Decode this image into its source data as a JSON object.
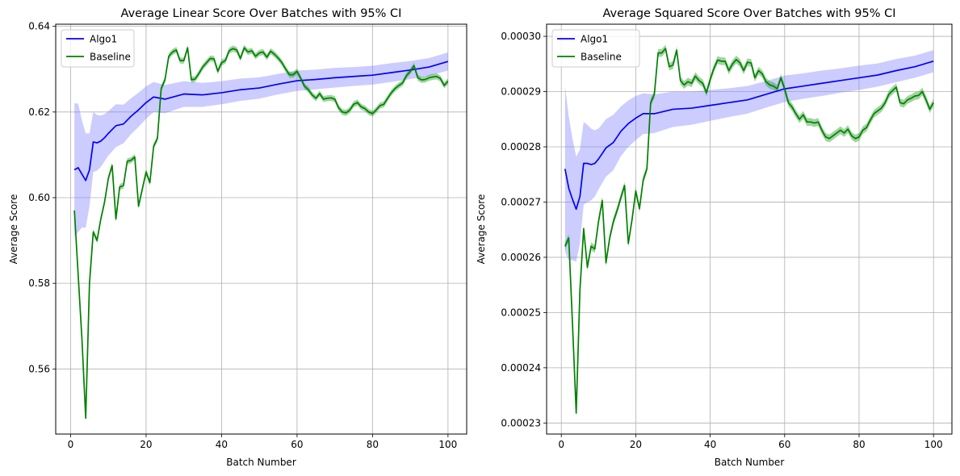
{
  "colors": {
    "algo": "#0000ff",
    "algo_band": "#8080ff",
    "baseline": "#008000",
    "baseline_band": "#2ca02c",
    "grid": "#b0b0b0"
  },
  "chart_data": [
    {
      "type": "line",
      "title": "Average Linear Score Over Batches with 95% CI",
      "xlabel": "Batch Number",
      "ylabel": "Average Score",
      "xlim": [
        -3.95,
        104.95
      ],
      "ylim": [
        0.5448,
        0.6405
      ],
      "xticks": [
        0,
        20,
        40,
        60,
        80,
        100
      ],
      "xtick_labels": [
        "0",
        "20",
        "40",
        "60",
        "80",
        "100"
      ],
      "yticks": [
        0.56,
        0.58,
        0.6,
        0.62,
        0.64
      ],
      "ytick_labels": [
        "0.56",
        "0.58",
        "0.60",
        "0.62",
        "0.64"
      ],
      "grid": true,
      "legend": "upper left",
      "series": [
        {
          "name": "Algo1",
          "x": [
            1,
            2,
            3,
            4,
            5,
            6,
            7,
            8,
            9,
            10,
            12,
            14,
            16,
            18,
            20,
            22,
            25,
            30,
            35,
            40,
            45,
            50,
            55,
            60,
            65,
            70,
            75,
            80,
            85,
            90,
            95,
            100
          ],
          "y": [
            0.6065,
            0.607,
            0.6055,
            0.604,
            0.6065,
            0.613,
            0.6128,
            0.6132,
            0.614,
            0.615,
            0.6168,
            0.6172,
            0.619,
            0.6205,
            0.6222,
            0.6235,
            0.623,
            0.6242,
            0.624,
            0.6245,
            0.6252,
            0.6256,
            0.6265,
            0.6273,
            0.6276,
            0.628,
            0.6283,
            0.6286,
            0.6292,
            0.6298,
            0.6305,
            0.6318
          ],
          "ci_halfwidth": [
            0.0155,
            0.015,
            0.0125,
            0.011,
            0.0085,
            0.007,
            0.0065,
            0.006,
            0.0055,
            0.0052,
            0.005,
            0.0045,
            0.0042,
            0.004,
            0.0038,
            0.0035,
            0.0033,
            0.003,
            0.0028,
            0.0027,
            0.0026,
            0.0025,
            0.0024,
            0.0024,
            0.0023,
            0.0023,
            0.0022,
            0.0022,
            0.0022,
            0.0021,
            0.0021,
            0.0021
          ]
        },
        {
          "name": "Baseline",
          "x": [
            1,
            2,
            3,
            4,
            5,
            6,
            7,
            8,
            9,
            10,
            11,
            12,
            13,
            14,
            15,
            16,
            17,
            18,
            19,
            20,
            21,
            22,
            23,
            24,
            25,
            26,
            27,
            28,
            29,
            30,
            31,
            32,
            33,
            34,
            35,
            36,
            37,
            38,
            39,
            40,
            41,
            42,
            43,
            44,
            45,
            46,
            47,
            48,
            49,
            50,
            51,
            52,
            53,
            54,
            55,
            56,
            57,
            58,
            59,
            60,
            61,
            62,
            63,
            64,
            65,
            66,
            67,
            68,
            69,
            70,
            71,
            72,
            73,
            74,
            75,
            76,
            77,
            78,
            79,
            80,
            81,
            82,
            83,
            84,
            85,
            86,
            87,
            88,
            89,
            90,
            91,
            92,
            93,
            94,
            95,
            96,
            97,
            98,
            99,
            100
          ],
          "y": [
            0.597,
            0.582,
            0.567,
            0.5485,
            0.58,
            0.592,
            0.59,
            0.595,
            0.599,
            0.6045,
            0.6075,
            0.595,
            0.6025,
            0.6028,
            0.6085,
            0.6087,
            0.6095,
            0.598,
            0.602,
            0.606,
            0.6035,
            0.612,
            0.6138,
            0.6255,
            0.6275,
            0.633,
            0.634,
            0.6345,
            0.632,
            0.632,
            0.635,
            0.6275,
            0.6277,
            0.629,
            0.6305,
            0.6315,
            0.6325,
            0.6324,
            0.6295,
            0.6315,
            0.632,
            0.6343,
            0.6348,
            0.6345,
            0.6325,
            0.635,
            0.634,
            0.6343,
            0.633,
            0.6338,
            0.634,
            0.6328,
            0.6342,
            0.6335,
            0.6326,
            0.6315,
            0.63,
            0.6287,
            0.6287,
            0.6295,
            0.6278,
            0.626,
            0.6252,
            0.624,
            0.6232,
            0.6243,
            0.623,
            0.6232,
            0.6233,
            0.623,
            0.621,
            0.62,
            0.6198,
            0.6205,
            0.6218,
            0.6222,
            0.6212,
            0.6208,
            0.62,
            0.6196,
            0.6205,
            0.6215,
            0.6218,
            0.6232,
            0.6245,
            0.6255,
            0.6262,
            0.6268,
            0.6285,
            0.6295,
            0.6308,
            0.628,
            0.6275,
            0.6276,
            0.628,
            0.6282,
            0.6283,
            0.6278,
            0.6262,
            0.6272
          ],
          "ci_halfwidth": 0.0007
        }
      ]
    },
    {
      "type": "line",
      "title": "Average Squared Score Over Batches with 95% CI",
      "xlabel": "Batch Number",
      "ylabel": "Average Score",
      "xlim": [
        -3.95,
        104.95
      ],
      "ylim": [
        0.000228,
        0.0003022
      ],
      "xticks": [
        0,
        20,
        40,
        60,
        80,
        100
      ],
      "xtick_labels": [
        "0",
        "20",
        "40",
        "60",
        "80",
        "100"
      ],
      "yticks": [
        0.00023,
        0.00024,
        0.00025,
        0.00026,
        0.00027,
        0.00028,
        0.00029,
        0.0003
      ],
      "ytick_labels": [
        "0.00023",
        "0.00024",
        "0.00025",
        "0.00026",
        "0.00027",
        "0.00028",
        "0.00029",
        "0.00030"
      ],
      "grid": true,
      "legend": "upper left",
      "series": [
        {
          "name": "Algo1",
          "x": [
            1,
            2,
            3,
            4,
            5,
            6,
            7,
            8,
            9,
            10,
            12,
            14,
            16,
            18,
            20,
            22,
            25,
            30,
            35,
            40,
            45,
            50,
            55,
            60,
            65,
            70,
            75,
            80,
            85,
            90,
            95,
            100
          ],
          "y": [
            0.000276,
            0.0002725,
            0.0002705,
            0.0002687,
            0.000271,
            0.000277,
            0.000277,
            0.0002768,
            0.000277,
            0.0002778,
            0.0002798,
            0.0002808,
            0.0002828,
            0.0002842,
            0.0002852,
            0.000286,
            0.000286,
            0.0002868,
            0.000287,
            0.0002875,
            0.000288,
            0.0002885,
            0.0002895,
            0.0002905,
            0.000291,
            0.0002915,
            0.000292,
            0.0002925,
            0.000293,
            0.0002938,
            0.0002945,
            0.0002955
          ],
          "ci_halfwidth": [
            1.5e-05,
            1.3e-05,
            1.1e-05,
            9.5e-06,
            8.5e-06,
            7.5e-06,
            7e-06,
            6.5e-06,
            6e-06,
            5.5e-06,
            5.2e-06,
            5e-06,
            4.5e-06,
            4.2e-06,
            4e-06,
            3.7e-06,
            3.5e-06,
            3.2e-06,
            3e-06,
            2.8e-06,
            2.6e-06,
            2.5e-06,
            2.4e-06,
            2.4e-06,
            2.3e-06,
            2.3e-06,
            2.2e-06,
            2.2e-06,
            2.1e-06,
            2.1e-06,
            2e-06,
            2e-06
          ]
        },
        {
          "name": "Baseline",
          "x": [
            1,
            2,
            3,
            4,
            5,
            6,
            7,
            8,
            9,
            10,
            11,
            12,
            13,
            14,
            15,
            16,
            17,
            18,
            19,
            20,
            21,
            22,
            23,
            24,
            25,
            26,
            27,
            28,
            29,
            30,
            31,
            32,
            33,
            34,
            35,
            36,
            37,
            38,
            39,
            40,
            41,
            42,
            43,
            44,
            45,
            46,
            47,
            48,
            49,
            50,
            51,
            52,
            53,
            54,
            55,
            56,
            57,
            58,
            59,
            60,
            61,
            62,
            63,
            64,
            65,
            66,
            67,
            68,
            69,
            70,
            71,
            72,
            73,
            74,
            75,
            76,
            77,
            78,
            79,
            80,
            81,
            82,
            83,
            84,
            85,
            86,
            87,
            88,
            89,
            90,
            91,
            92,
            93,
            94,
            95,
            96,
            97,
            98,
            99,
            100
          ],
          "y": [
            0.000262,
            0.0002635,
            0.000248,
            0.0002318,
            0.000254,
            0.0002652,
            0.0002582,
            0.000262,
            0.0002615,
            0.0002665,
            0.0002703,
            0.000259,
            0.0002635,
            0.0002665,
            0.0002685,
            0.0002708,
            0.000273,
            0.0002625,
            0.0002668,
            0.000272,
            0.0002688,
            0.000274,
            0.000276,
            0.000288,
            0.0002895,
            0.000297,
            0.000297,
            0.0002978,
            0.0002945,
            0.0002948,
            0.0002975,
            0.000292,
            0.0002912,
            0.0002918,
            0.0002915,
            0.0002928,
            0.000292,
            0.0002915,
            0.0002898,
            0.0002922,
            0.0002942,
            0.0002957,
            0.0002955,
            0.0002955,
            0.0002938,
            0.000295,
            0.0002958,
            0.0002952,
            0.0002938,
            0.0002953,
            0.0002952,
            0.0002925,
            0.0002938,
            0.0002932,
            0.0002918,
            0.0002912,
            0.000291,
            0.0002905,
            0.0002925,
            0.0002905,
            0.000288,
            0.0002872,
            0.000286,
            0.000285,
            0.0002858,
            0.0002845,
            0.0002845,
            0.0002843,
            0.0002845,
            0.000283,
            0.0002818,
            0.0002815,
            0.000282,
            0.0002825,
            0.000283,
            0.0002825,
            0.0002832,
            0.000282,
            0.0002815,
            0.0002818,
            0.000283,
            0.0002835,
            0.0002848,
            0.000286,
            0.0002865,
            0.000287,
            0.000288,
            0.0002895,
            0.0002902,
            0.0002908,
            0.000288,
            0.0002878,
            0.0002885,
            0.0002888,
            0.0002892,
            0.0002893,
            0.00029,
            0.0002885,
            0.0002868,
            0.000288
          ],
          "ci_halfwidth": 7e-07
        }
      ]
    }
  ]
}
